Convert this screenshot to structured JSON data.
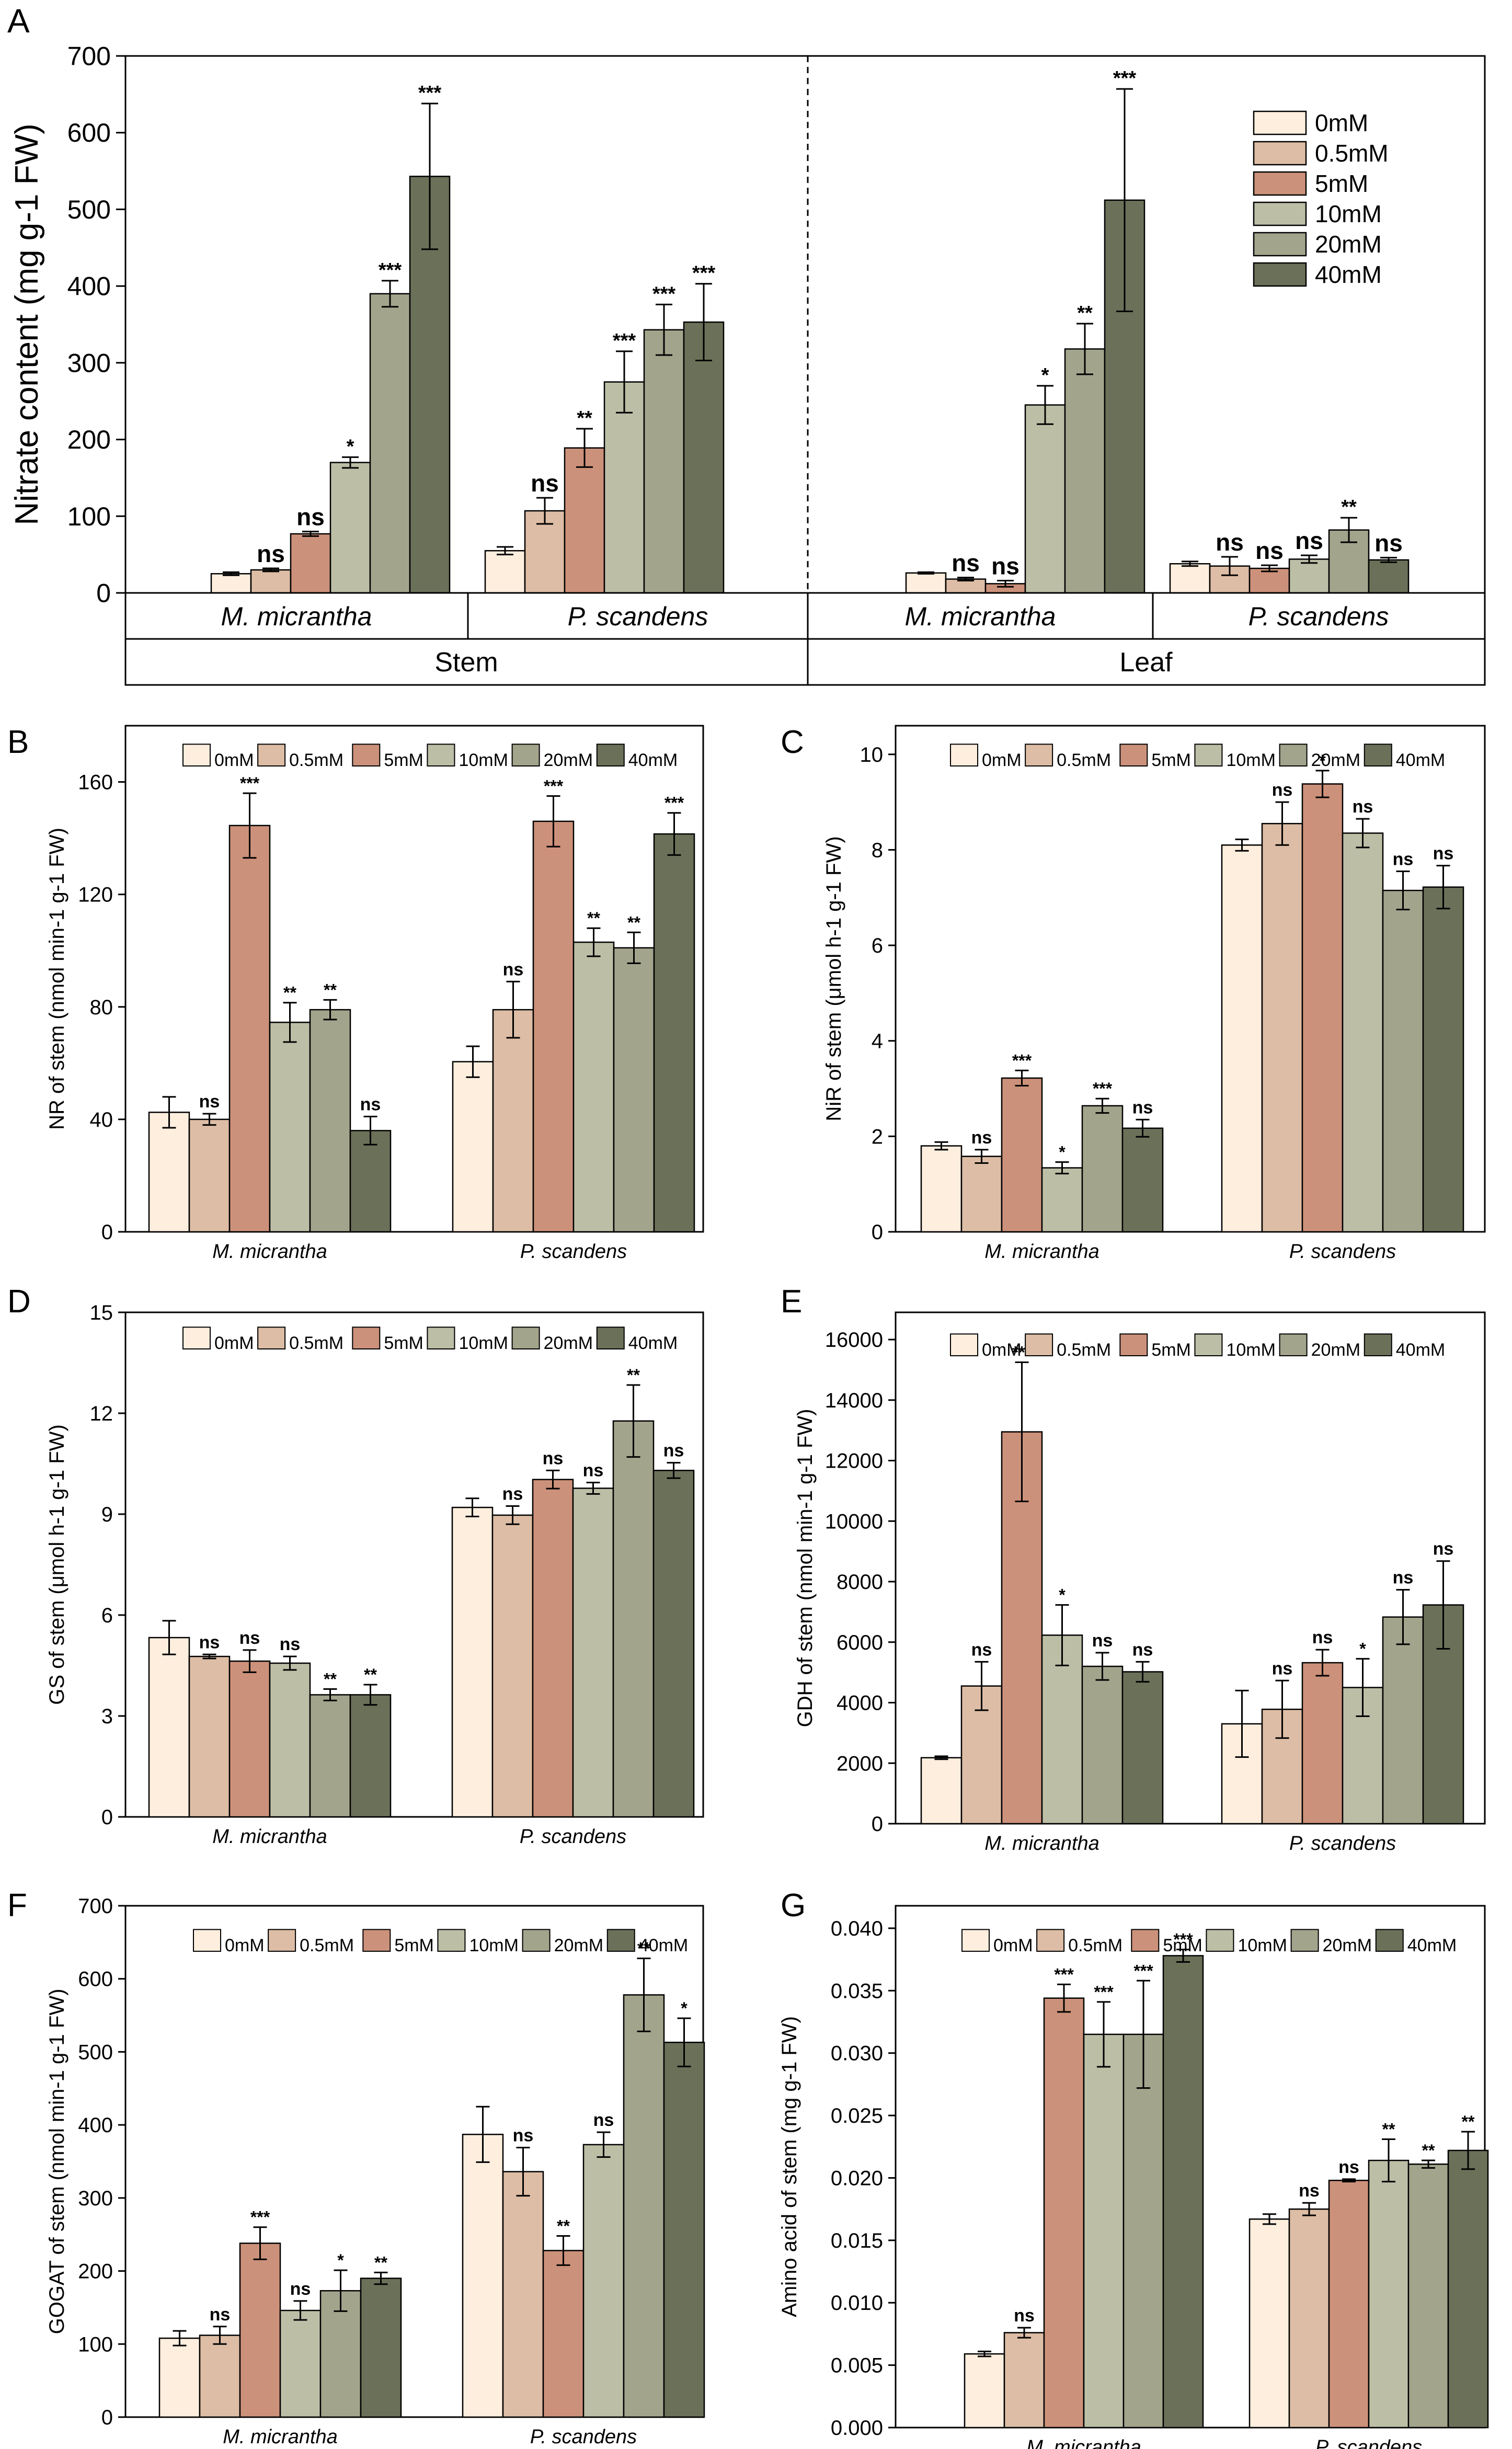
{
  "figure": {
    "legend_labels": [
      "0mM",
      "0.5mM",
      "5mM",
      "10mM",
      "20mM",
      "40mM"
    ],
    "colors": [
      "#FDEEDE",
      "#DDBDA5",
      "#CC917A",
      "#BCBEA6",
      "#A3A48C",
      "#6B7059"
    ]
  },
  "chart_data": [
    {
      "panel": "A",
      "type": "bar",
      "title": "",
      "xlabel": "",
      "ylabel": "Nitrate content  (mg g-1 FW)",
      "ylim": [
        0,
        700
      ],
      "yticks": [
        0,
        100,
        200,
        300,
        400,
        500,
        600,
        700
      ],
      "group_labels": [
        "M. micrantha",
        "P. scandens",
        "M. micrantha",
        "P. scandens"
      ],
      "super_labels": [
        "Stem",
        "Leaf"
      ],
      "series_names": [
        "0mM",
        "0.5mM",
        "5mM",
        "10mM",
        "20mM",
        "40mM"
      ],
      "groups": [
        {
          "values": [
            25,
            30,
            77,
            170,
            390,
            543
          ],
          "errors": [
            2,
            2,
            3,
            7,
            17,
            95
          ],
          "sig": [
            "",
            "ns",
            "ns",
            "*",
            "***",
            "***"
          ]
        },
        {
          "values": [
            55,
            107,
            189,
            275,
            343,
            353
          ],
          "errors": [
            5,
            17,
            25,
            40,
            33,
            50
          ],
          "sig": [
            "",
            "ns",
            "**",
            "***",
            "***",
            "***"
          ]
        },
        {
          "values": [
            26,
            18,
            12,
            245,
            318,
            512
          ],
          "errors": [
            1,
            2,
            4,
            25,
            33,
            145
          ],
          "sig": [
            "",
            "ns",
            "ns",
            "*",
            "**",
            "***"
          ]
        },
        {
          "values": [
            38,
            35,
            32,
            44,
            82,
            43
          ],
          "errors": [
            3,
            12,
            4,
            5,
            16,
            3
          ],
          "sig": [
            "",
            "ns",
            "ns",
            "ns",
            "**",
            "ns"
          ]
        }
      ]
    },
    {
      "panel": "B",
      "type": "bar",
      "title": "",
      "xlabel": "",
      "ylabel": "NR of stem (nmol min-1 g-1 FW)",
      "ylim": [
        0,
        180
      ],
      "yticks": [
        0,
        40,
        80,
        120,
        160
      ],
      "decimals": 0,
      "group_labels": [
        "M. micrantha",
        "P. scandens"
      ],
      "series_names": [
        "0mM",
        "0.5mM",
        "5mM",
        "10mM",
        "20mM",
        "40mM"
      ],
      "groups": [
        {
          "values": [
            42.5,
            40,
            144.5,
            74.5,
            79,
            36
          ],
          "errors": [
            5.5,
            2,
            11.5,
            7,
            3.5,
            5
          ],
          "sig": [
            "",
            "ns",
            "***",
            "**",
            "**",
            "ns"
          ]
        },
        {
          "values": [
            60.5,
            79,
            146,
            103,
            101,
            141.5
          ],
          "errors": [
            5.5,
            10,
            9,
            5,
            5.5,
            7.5
          ],
          "sig": [
            "",
            "ns",
            "***",
            "**",
            "**",
            "***"
          ]
        }
      ]
    },
    {
      "panel": "C",
      "type": "bar",
      "title": "",
      "xlabel": "",
      "ylabel": "NiR of stem (μmol h-1 g-1 FW)",
      "ylim": [
        0,
        10.6
      ],
      "yticks": [
        0,
        2,
        4,
        6,
        8,
        10
      ],
      "decimals": 0,
      "group_labels": [
        "M. micrantha",
        "P. scandens"
      ],
      "series_names": [
        "0mM",
        "0.5mM",
        "5mM",
        "10mM",
        "20mM",
        "40mM"
      ],
      "groups": [
        {
          "values": [
            1.8,
            1.58,
            3.22,
            1.34,
            2.64,
            2.17
          ],
          "errors": [
            0.08,
            0.14,
            0.16,
            0.12,
            0.15,
            0.18
          ],
          "sig": [
            "",
            "ns",
            "***",
            "*",
            "***",
            "ns"
          ]
        },
        {
          "values": [
            8.1,
            8.55,
            9.38,
            8.35,
            7.15,
            7.22
          ],
          "errors": [
            0.12,
            0.45,
            0.28,
            0.3,
            0.4,
            0.45
          ],
          "sig": [
            "",
            "ns",
            "*",
            "ns",
            "ns",
            "ns"
          ]
        }
      ]
    },
    {
      "panel": "D",
      "type": "bar",
      "title": "",
      "xlabel": "",
      "ylabel": "GS of stem (μmol h-1 g-1 FW)",
      "ylim": [
        0,
        15
      ],
      "yticks": [
        0,
        3,
        6,
        9,
        12,
        15
      ],
      "decimals": 0,
      "group_labels": [
        "M. micrantha",
        "P. scandens"
      ],
      "series_names": [
        "0mM",
        "0.5mM",
        "5mM",
        "10mM",
        "20mM",
        "40mM"
      ],
      "groups": [
        {
          "values": [
            5.33,
            4.77,
            4.63,
            4.57,
            3.63,
            3.63
          ],
          "errors": [
            0.5,
            0.06,
            0.33,
            0.2,
            0.17,
            0.3
          ],
          "sig": [
            "",
            "ns",
            "ns",
            "ns",
            "**",
            "**"
          ]
        },
        {
          "values": [
            9.2,
            8.97,
            10.03,
            9.77,
            11.77,
            10.3
          ],
          "errors": [
            0.27,
            0.27,
            0.27,
            0.17,
            1.07,
            0.23
          ],
          "sig": [
            "",
            "ns",
            "ns",
            "ns",
            "**",
            "ns"
          ]
        }
      ]
    },
    {
      "panel": "E",
      "type": "bar",
      "title": "",
      "xlabel": "",
      "ylabel": "GDH of stem (nmol min-1 g-1 FW)",
      "ylim": [
        0,
        16900
      ],
      "yticks": [
        0,
        2000,
        4000,
        6000,
        8000,
        10000,
        12000,
        14000,
        16000
      ],
      "decimals": 0,
      "group_labels": [
        "M. micrantha",
        "P. scandens"
      ],
      "series_names": [
        "0mM",
        "0.5mM",
        "5mM",
        "10mM",
        "20mM",
        "40mM"
      ],
      "groups": [
        {
          "values": [
            2180,
            4550,
            12950,
            6230,
            5200,
            5020
          ],
          "errors": [
            50,
            800,
            2300,
            1000,
            450,
            330
          ],
          "sig": [
            "",
            "ns",
            "***",
            "*",
            "ns",
            "ns"
          ]
        },
        {
          "values": [
            3300,
            3780,
            5320,
            4500,
            6830,
            7230
          ],
          "errors": [
            1100,
            950,
            430,
            950,
            900,
            1450
          ],
          "sig": [
            "",
            "ns",
            "ns",
            "*",
            "ns",
            "ns"
          ]
        }
      ]
    },
    {
      "panel": "F",
      "type": "bar",
      "title": "",
      "xlabel": "",
      "ylabel": "GOGAT of stem (nmol min-1 g-1 FW)",
      "ylim": [
        0,
        700
      ],
      "yticks": [
        0,
        100,
        200,
        300,
        400,
        500,
        600,
        700
      ],
      "decimals": 0,
      "group_labels": [
        "M. micrantha",
        "P. scandens"
      ],
      "series_names": [
        "0mM",
        "0.5mM",
        "5mM",
        "10mM",
        "20mM",
        "40mM"
      ],
      "groups": [
        {
          "values": [
            108,
            112,
            238,
            146,
            173,
            190
          ],
          "errors": [
            10,
            12,
            22,
            13,
            28,
            8
          ],
          "sig": [
            "",
            "ns",
            "***",
            "ns",
            "*",
            "**"
          ]
        },
        {
          "values": [
            387,
            336,
            228,
            373,
            578,
            513
          ],
          "errors": [
            38,
            33,
            20,
            17,
            50,
            33
          ],
          "sig": [
            "",
            "ns",
            "**",
            "ns",
            "**",
            "*"
          ]
        }
      ]
    },
    {
      "panel": "G",
      "type": "bar",
      "title": "",
      "xlabel": "",
      "ylabel": "Amino acid of stem (mg g-1 FW)",
      "ylim": [
        0,
        0.0418
      ],
      "yticks": [
        0,
        0.005,
        0.01,
        0.015,
        0.02,
        0.025,
        0.03,
        0.035,
        0.04
      ],
      "decimals": 3,
      "group_labels": [
        "M. micrantha",
        "P. scandens"
      ],
      "series_names": [
        "0mM",
        "0.5mM",
        "5mM",
        "10mM",
        "20mM",
        "40mM"
      ],
      "groups": [
        {
          "values": [
            0.0059,
            0.0076,
            0.0344,
            0.0315,
            0.0315,
            0.0378
          ],
          "errors": [
            0.0002,
            0.0004,
            0.0011,
            0.0026,
            0.0043,
            0.0005
          ],
          "sig": [
            "",
            "ns",
            "***",
            "***",
            "***",
            "***"
          ]
        },
        {
          "values": [
            0.0167,
            0.0175,
            0.0198,
            0.0214,
            0.0211,
            0.0222
          ],
          "errors": [
            0.0004,
            0.0005,
            0.0001,
            0.0017,
            0.0003,
            0.0015
          ],
          "sig": [
            "",
            "ns",
            "ns",
            "**",
            "**",
            "**"
          ]
        }
      ]
    }
  ]
}
